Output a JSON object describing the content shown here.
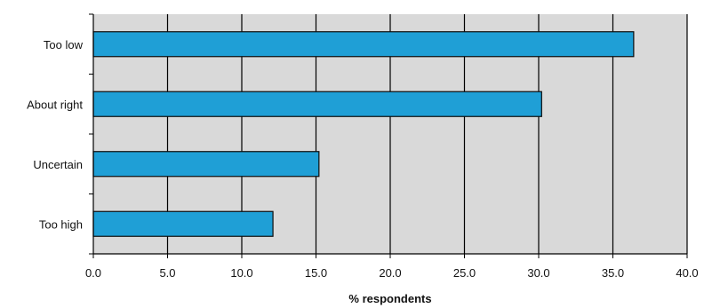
{
  "chart_data": {
    "type": "bar",
    "orientation": "horizontal",
    "categories": [
      "Too low",
      "About right",
      "Uncertain",
      "Too high"
    ],
    "values": [
      36.4,
      30.2,
      15.2,
      12.1
    ],
    "xlabel": "% respondents",
    "ylabel": "",
    "xlim": [
      0,
      40
    ],
    "xticks": [
      "0.0",
      "5.0",
      "10.0",
      "15.0",
      "20.0",
      "25.0",
      "30.0",
      "35.0",
      "40.0"
    ],
    "grid": true,
    "colors": {
      "bar": "#1f9fd6",
      "bar_edge": "#0d0d0d",
      "plot_bg": "#d9d9d9",
      "grid": "#000000"
    }
  }
}
